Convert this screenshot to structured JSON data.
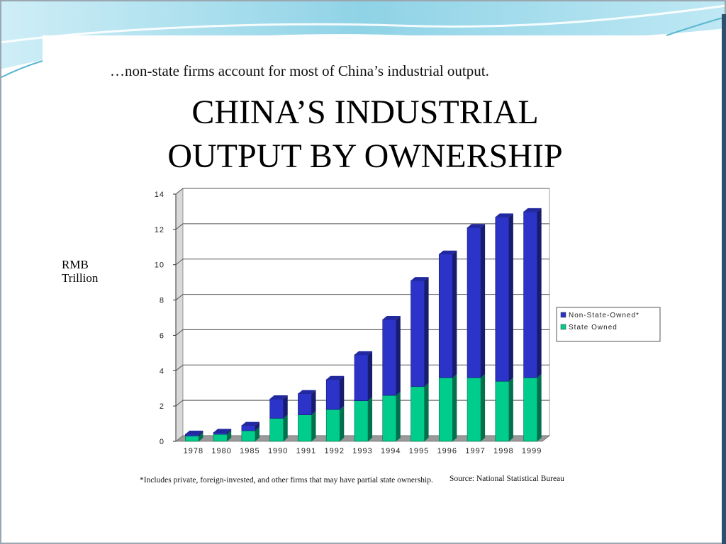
{
  "slide": {
    "subtitle": "…non-state firms account for most of China’s industrial  output.",
    "title_line1": "CHINA’S INDUSTRIAL",
    "title_line2": "OUTPUT BY OWNERSHIP",
    "ylabel_line1": "RMB",
    "ylabel_line2": "Trillion",
    "footnote": "*Includes private, foreign-invested, and other firms that may have partial state ownership.",
    "source": "Source:  National Statistical Bureau"
  },
  "colors": {
    "state_owned": "#00cc8c",
    "non_state_owned": "#2b33c8",
    "deco_blue": "#7ecbe0"
  },
  "chart_data": {
    "type": "bar",
    "stacked": true,
    "categories": [
      "1978",
      "1980",
      "1985",
      "1990",
      "1991",
      "1992",
      "1993",
      "1994",
      "1995",
      "1996",
      "1997",
      "1998",
      "1999"
    ],
    "series": [
      {
        "name": "State Owned",
        "values": [
          0.3,
          0.4,
          0.6,
          1.3,
          1.5,
          1.8,
          2.3,
          2.6,
          3.1,
          3.6,
          3.6,
          3.4,
          3.6
        ]
      },
      {
        "name": "Non-State-Owned*",
        "values": [
          0.1,
          0.1,
          0.3,
          1.1,
          1.2,
          1.7,
          2.6,
          4.3,
          6.0,
          7.0,
          8.5,
          9.3,
          9.4
        ]
      }
    ],
    "ylim": [
      0,
      14
    ],
    "yticks": [
      0,
      2,
      4,
      6,
      8,
      10,
      12,
      14
    ],
    "grid": true,
    "legend_position": "right",
    "legend": [
      "Non-State-Owned*",
      "State Owned"
    ]
  }
}
